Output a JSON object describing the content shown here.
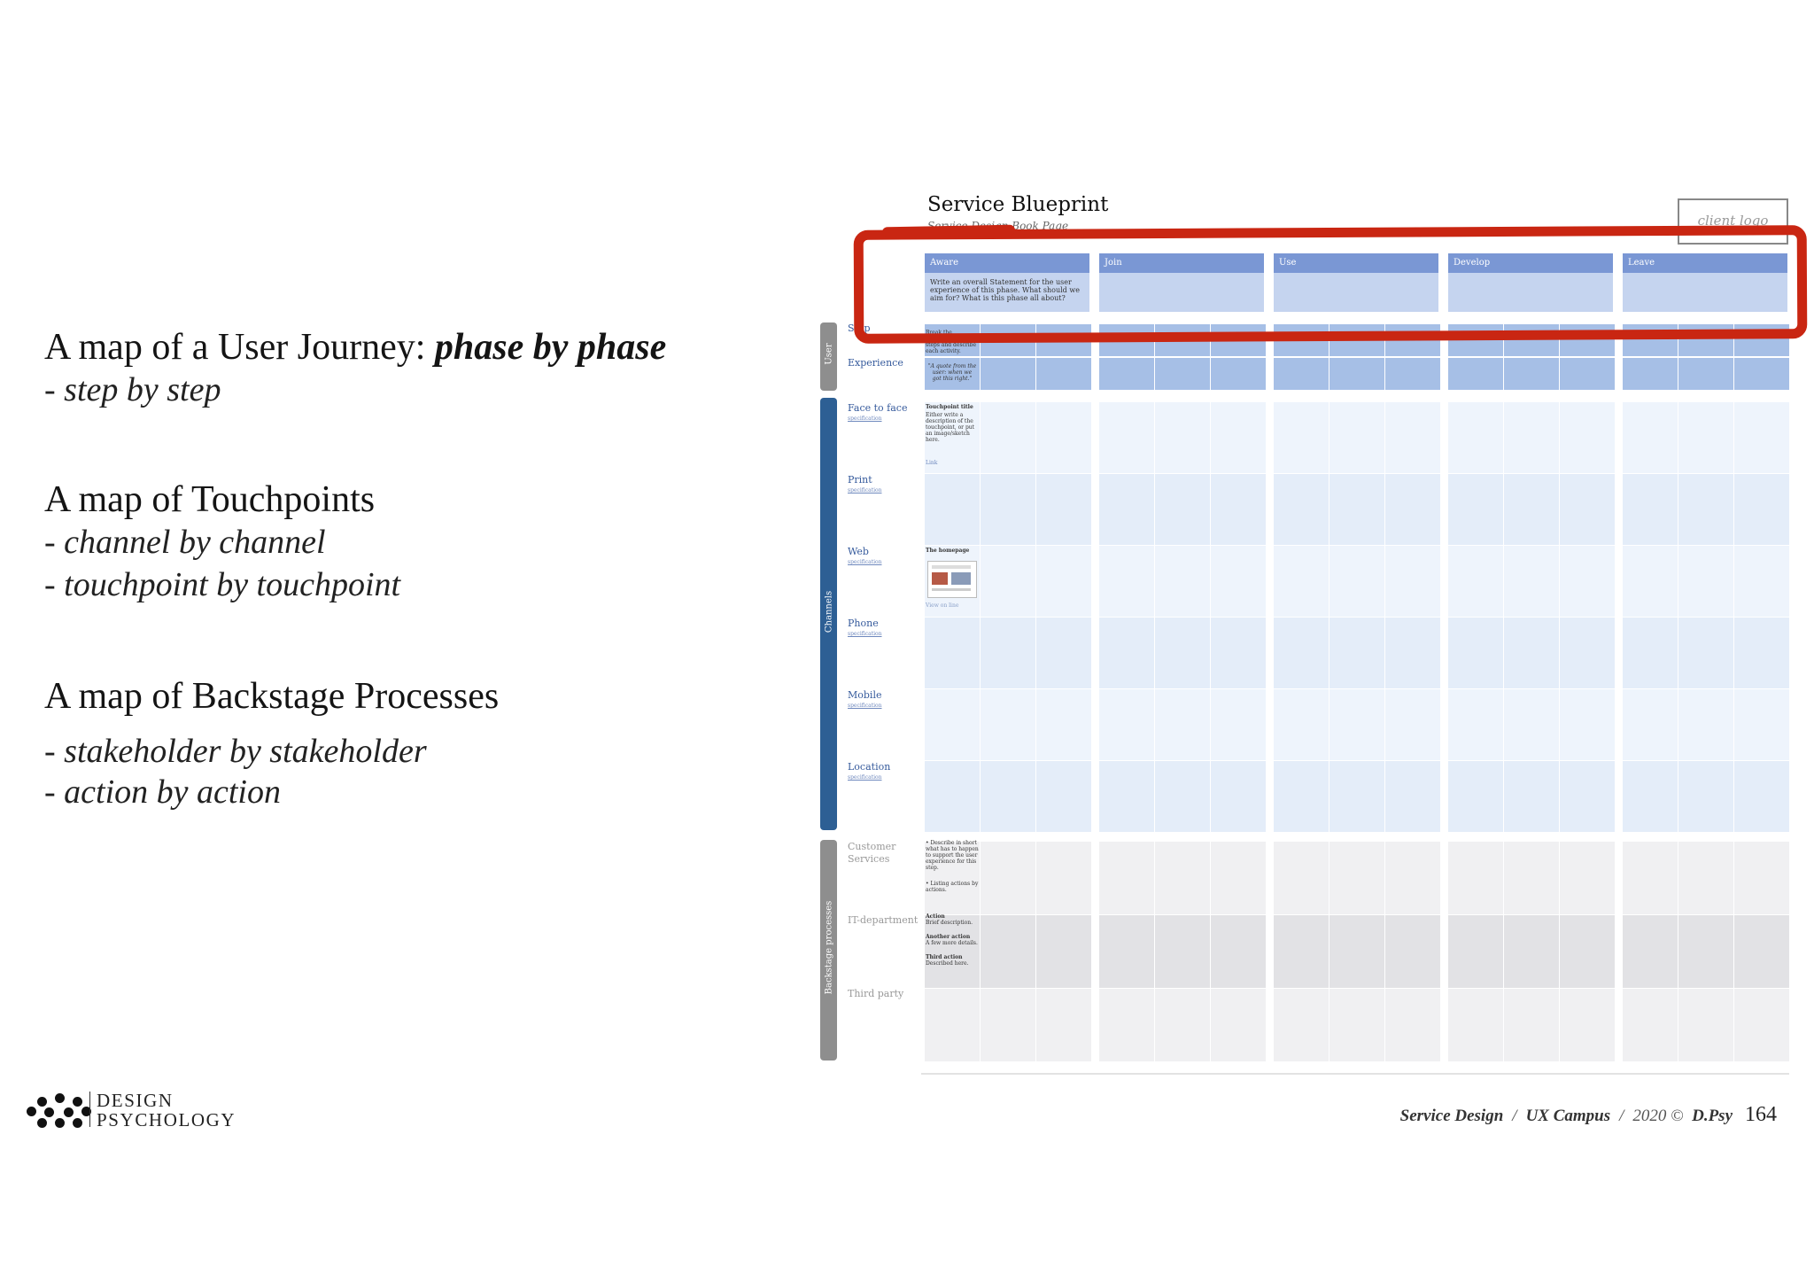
{
  "left": {
    "s1_title_plain": "A map of a User Journey: ",
    "s1_title_emph": "phase by phase",
    "s1_sub1": "- step by step",
    "s2_title": "A map of Touchpoints",
    "s2_sub1": "- channel by channel",
    "s2_sub2": "- touchpoint by touchpoint",
    "s3_title": "A map of Backstage Processes",
    "s3_sub1": "- stakeholder by stakeholder",
    "s3_sub2": "- action by action"
  },
  "logo": {
    "line1": "DESIGN",
    "line2": "PSYCHOLOGY"
  },
  "footer": {
    "course": "Service Design",
    "campus": "UX Campus",
    "year": "2020 ©",
    "author": "D.Psy",
    "page": "164",
    "sep": "/"
  },
  "blueprint": {
    "title": "Service Blueprint",
    "subtitle": "Service Design Book Page",
    "client_logo": "client logo",
    "phases": [
      "Aware",
      "Join",
      "Use",
      "Develop",
      "Leave"
    ],
    "aware_text": "Write an overall Statement for the user experience of this phase. What should we aim for? What is this phase all about?",
    "group_user": "User",
    "group_channels": "Channels",
    "group_backstage": "Backstage processes",
    "rows": {
      "step": "Step",
      "experience": "Experience",
      "face": "Face to face",
      "print": "Print",
      "web": "Web",
      "phone": "Phone",
      "mobile": "Mobile",
      "location": "Location",
      "customer": "Customer Services",
      "it": "IT-department",
      "third": "Third party"
    },
    "spec": "specification",
    "cells": {
      "step_text": "Break the interaction into steps and describe each activity.",
      "exp_quote": "\"A quote from the user: when we got this right.\"",
      "tp_title": "Touchpoint title",
      "tp_desc": "Either write a description of the touchpoint, or put an image/sketch here.",
      "link": "Link",
      "web_title": "The homepage",
      "web_link": "View on line",
      "cs_text1": "• Describe in short what has to happen to support the user experience for this step.",
      "cs_text2": "• Listing actions by actions.",
      "it_a1": "Action",
      "it_a1d": "Brief description.",
      "it_a2": "Another action",
      "it_a2d": "A few more details.",
      "it_a3": "Third action",
      "it_a3d": "Described here."
    }
  }
}
